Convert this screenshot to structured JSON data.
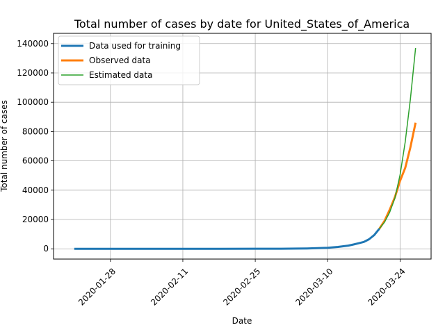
{
  "chart_data": {
    "type": "line",
    "title": "Total number of cases by date for United_States_of_America",
    "xlabel": "Date",
    "ylabel": "Total number of cases",
    "x_ticks": [
      "2020-01-28",
      "2020-02-11",
      "2020-02-25",
      "2020-03-10",
      "2020-03-24"
    ],
    "y_ticks": [
      0,
      20000,
      40000,
      60000,
      80000,
      100000,
      120000,
      140000
    ],
    "xlim": [
      "2020-01-17",
      "2020-03-30"
    ],
    "ylim": [
      -7000,
      147000
    ],
    "grid": true,
    "legend_position": "top-left",
    "series": [
      {
        "name": "Data used for training",
        "color": "#1f77b4",
        "width": 3,
        "points": [
          [
            "2020-01-21",
            1
          ],
          [
            "2020-01-28",
            5
          ],
          [
            "2020-02-04",
            11
          ],
          [
            "2020-02-11",
            13
          ],
          [
            "2020-02-18",
            15
          ],
          [
            "2020-02-25",
            53
          ],
          [
            "2020-03-01",
            74
          ],
          [
            "2020-03-04",
            150
          ],
          [
            "2020-03-06",
            250
          ],
          [
            "2020-03-08",
            430
          ],
          [
            "2020-03-10",
            700
          ],
          [
            "2020-03-12",
            1300
          ],
          [
            "2020-03-14",
            2200
          ],
          [
            "2020-03-15",
            2950
          ],
          [
            "2020-03-16",
            3800
          ],
          [
            "2020-03-17",
            4700
          ],
          [
            "2020-03-18",
            6500
          ],
          [
            "2020-03-19",
            9400
          ],
          [
            "2020-03-20",
            13700
          ]
        ]
      },
      {
        "name": "Observed data",
        "color": "#ff7f0e",
        "width": 3,
        "points": [
          [
            "2020-03-20",
            13700
          ],
          [
            "2020-03-21",
            19100
          ],
          [
            "2020-03-22",
            26700
          ],
          [
            "2020-03-23",
            35200
          ],
          [
            "2020-03-24",
            46400
          ],
          [
            "2020-03-25",
            55200
          ],
          [
            "2020-03-26",
            69200
          ],
          [
            "2020-03-27",
            86000
          ]
        ]
      },
      {
        "name": "Estimated data",
        "color": "#2ca02c",
        "width": 1.5,
        "points": [
          [
            "2020-03-20",
            13700
          ],
          [
            "2020-03-21",
            18200
          ],
          [
            "2020-03-22",
            25000
          ],
          [
            "2020-03-23",
            34500
          ],
          [
            "2020-03-24",
            50500
          ],
          [
            "2020-03-25",
            73000
          ],
          [
            "2020-03-26",
            102000
          ],
          [
            "2020-03-27",
            137000
          ]
        ]
      }
    ]
  }
}
